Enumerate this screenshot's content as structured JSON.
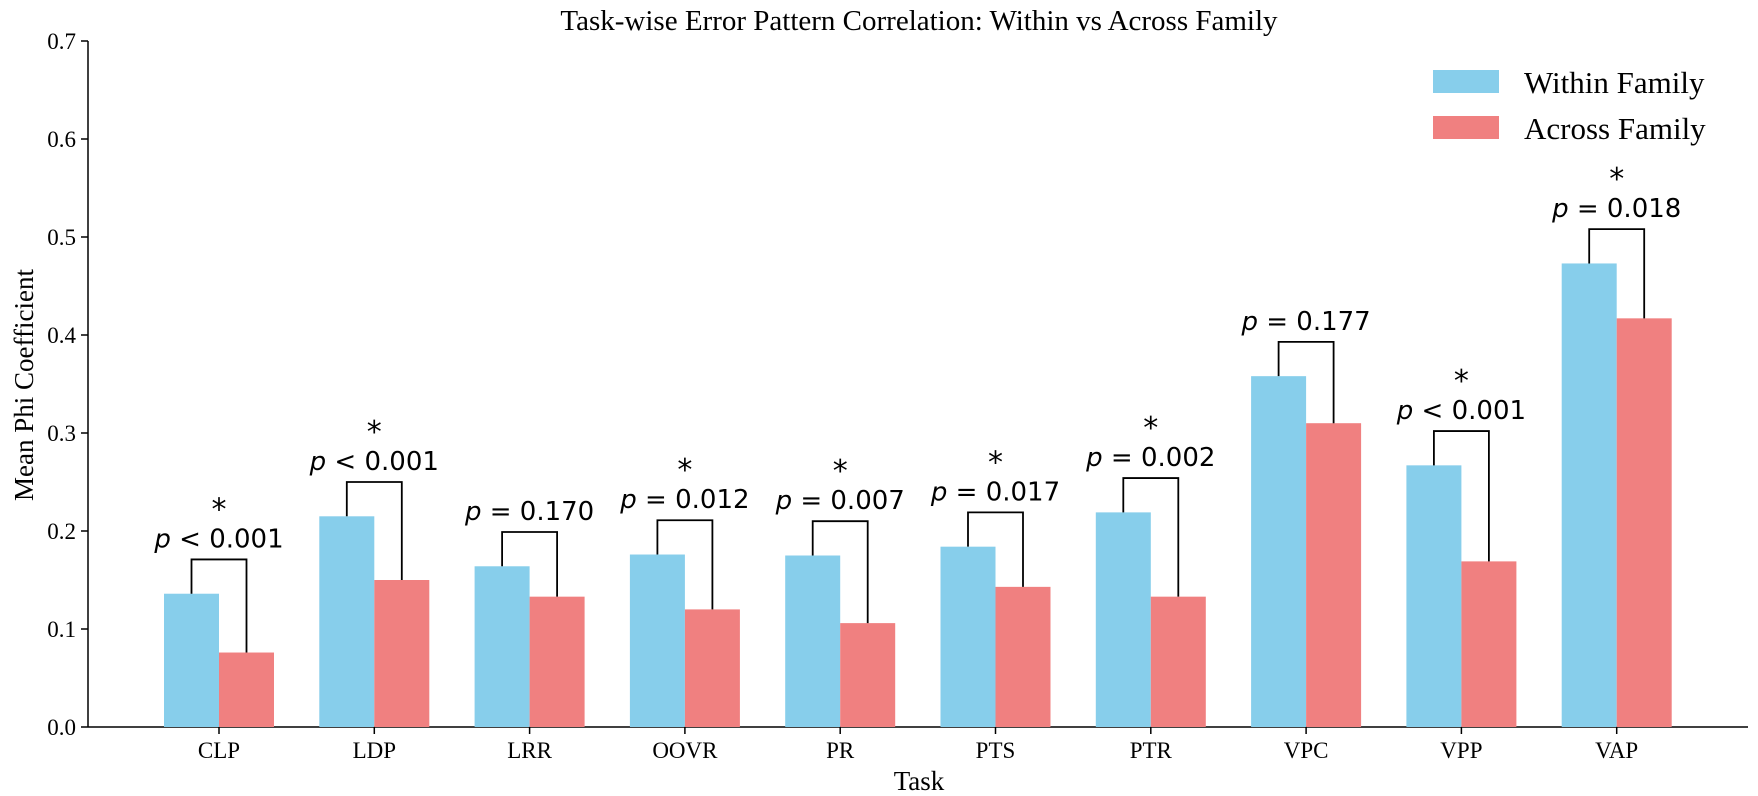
{
  "chart_data": {
    "type": "bar",
    "title": "Task-wise Error Pattern Correlation: Within vs Across Family",
    "xlabel": "Task",
    "ylabel": "Mean Phi Coefficient",
    "ylim": [
      0,
      0.7
    ],
    "yticks": [
      "0.0",
      "0.1",
      "0.2",
      "0.3",
      "0.4",
      "0.5",
      "0.6",
      "0.7"
    ],
    "grid": false,
    "legend_position": "top-right",
    "categories": [
      "CLP",
      "LDP",
      "LRR",
      "OOVR",
      "PR",
      "PTS",
      "PTR",
      "VPC",
      "VPP",
      "VAP"
    ],
    "series": [
      {
        "name": "Within Family",
        "color": "#87ceeb",
        "values": [
          0.136,
          0.215,
          0.164,
          0.176,
          0.175,
          0.184,
          0.219,
          0.358,
          0.267,
          0.473
        ]
      },
      {
        "name": "Across Family",
        "color": "#f08080",
        "values": [
          0.076,
          0.15,
          0.133,
          0.12,
          0.106,
          0.143,
          0.133,
          0.31,
          0.169,
          0.417
        ]
      }
    ],
    "annotations": [
      {
        "var": "p",
        "op": "<",
        "value": "0.001",
        "significant": true,
        "star": "*"
      },
      {
        "var": "p",
        "op": "<",
        "value": "0.001",
        "significant": true,
        "star": "*"
      },
      {
        "var": "p",
        "op": "=",
        "value": "0.170",
        "significant": false,
        "star": ""
      },
      {
        "var": "p",
        "op": "=",
        "value": "0.012",
        "significant": true,
        "star": "*"
      },
      {
        "var": "p",
        "op": "=",
        "value": "0.007",
        "significant": true,
        "star": "*"
      },
      {
        "var": "p",
        "op": "=",
        "value": "0.017",
        "significant": true,
        "star": "*"
      },
      {
        "var": "p",
        "op": "=",
        "value": "0.002",
        "significant": true,
        "star": "*"
      },
      {
        "var": "p",
        "op": "=",
        "value": "0.177",
        "significant": false,
        "star": ""
      },
      {
        "var": "p",
        "op": "<",
        "value": "0.001",
        "significant": true,
        "star": "*"
      },
      {
        "var": "p",
        "op": "=",
        "value": "0.018",
        "significant": true,
        "star": "*"
      }
    ]
  }
}
